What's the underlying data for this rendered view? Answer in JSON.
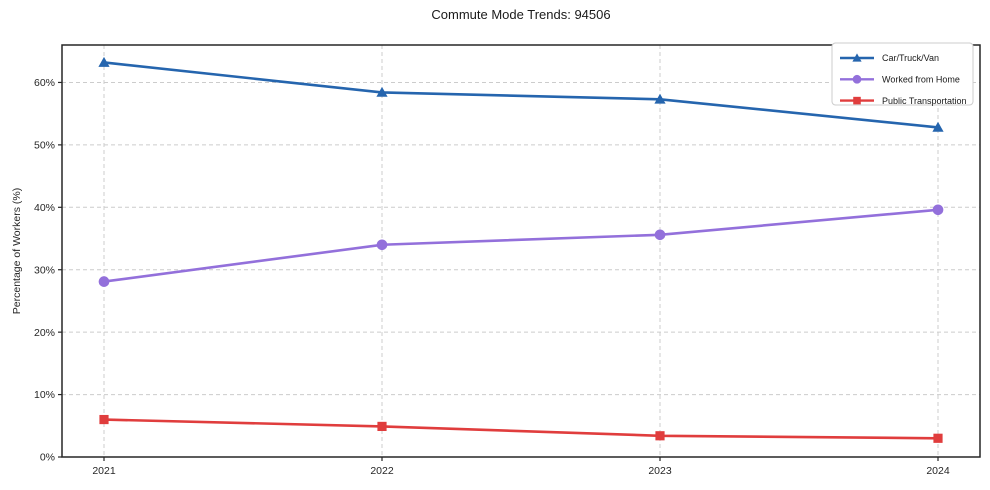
{
  "title": "Commute Mode Trends: 94506",
  "chart_data": {
    "type": "line",
    "x": [
      "2021",
      "2022",
      "2023",
      "2024"
    ],
    "series": [
      {
        "name": "Car/Truck/Van",
        "values": [
          63.2,
          58.4,
          57.3,
          52.8
        ],
        "color": "#2565ae",
        "marker": "triangle"
      },
      {
        "name": "Worked from Home",
        "values": [
          28.1,
          34.0,
          35.6,
          39.6
        ],
        "color": "#9370db",
        "marker": "circle"
      },
      {
        "name": "Public Transportation",
        "values": [
          6.0,
          4.9,
          3.4,
          3.0
        ],
        "color": "#e03d3d",
        "marker": "square"
      }
    ],
    "xlabel": "",
    "ylabel": "Percentage of Workers (%)",
    "yticks": [
      0,
      10,
      20,
      30,
      40,
      50,
      60
    ],
    "ytick_labels": [
      "0%",
      "10%",
      "20%",
      "30%",
      "40%",
      "50%",
      "60%"
    ],
    "ylim": [
      0,
      66
    ],
    "grid": true,
    "grid_style": "dashed",
    "legend_position": "upper right",
    "colors": {
      "grid": "#cccccc",
      "spine": "#262626",
      "text": "#262626",
      "legend_border": "#cccccc",
      "background": "#ffffff"
    }
  }
}
